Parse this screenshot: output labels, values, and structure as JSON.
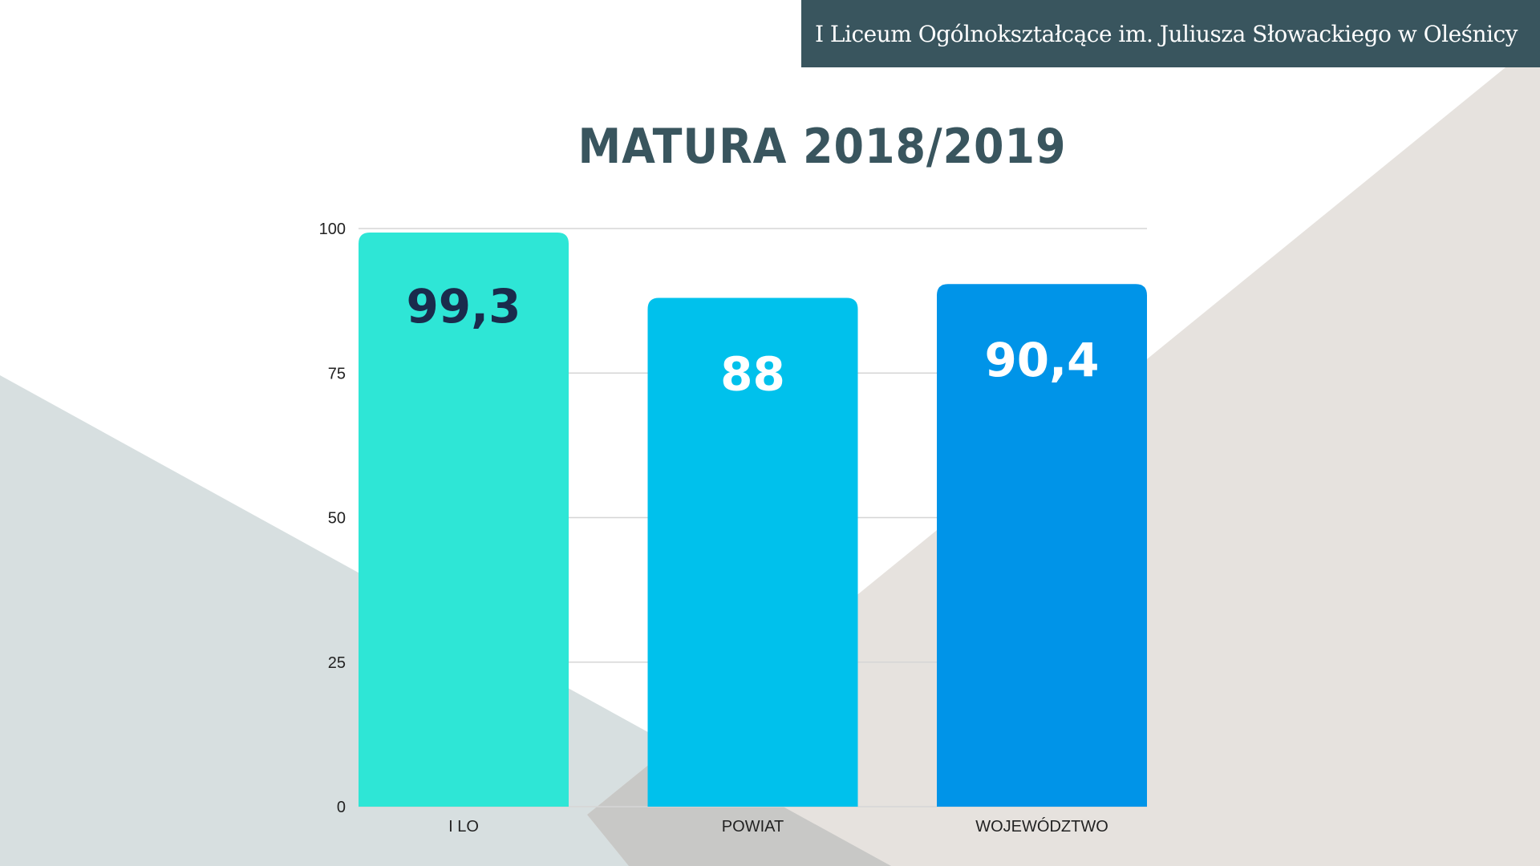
{
  "header": {
    "school_name": "I Liceum Ogólnokształcące im. Juliusza Słowackiego w Oleśnicy"
  },
  "chart_data": {
    "type": "bar",
    "title": "MATURA 2018/2019",
    "categories": [
      "I LO",
      "POWIAT",
      "WOJEWÓDZTWO"
    ],
    "values": [
      99.3,
      88,
      90.4
    ],
    "value_labels": [
      "99,3",
      "88",
      "90,4"
    ],
    "colors": [
      "#2ee6d6",
      "#00c1ec",
      "#0094e8"
    ],
    "label_colors": [
      "#1a2b4c",
      "#ffffff",
      "#ffffff"
    ],
    "xlabel": "",
    "ylabel": "",
    "ylim": [
      0,
      100
    ],
    "yticks": [
      0,
      25,
      50,
      75,
      100
    ],
    "grid": true
  },
  "colors": {
    "header_bg": "#39555e",
    "title": "#39555e",
    "shape_grey": "#d7dfe0",
    "shape_beige": "#e6e2de"
  }
}
